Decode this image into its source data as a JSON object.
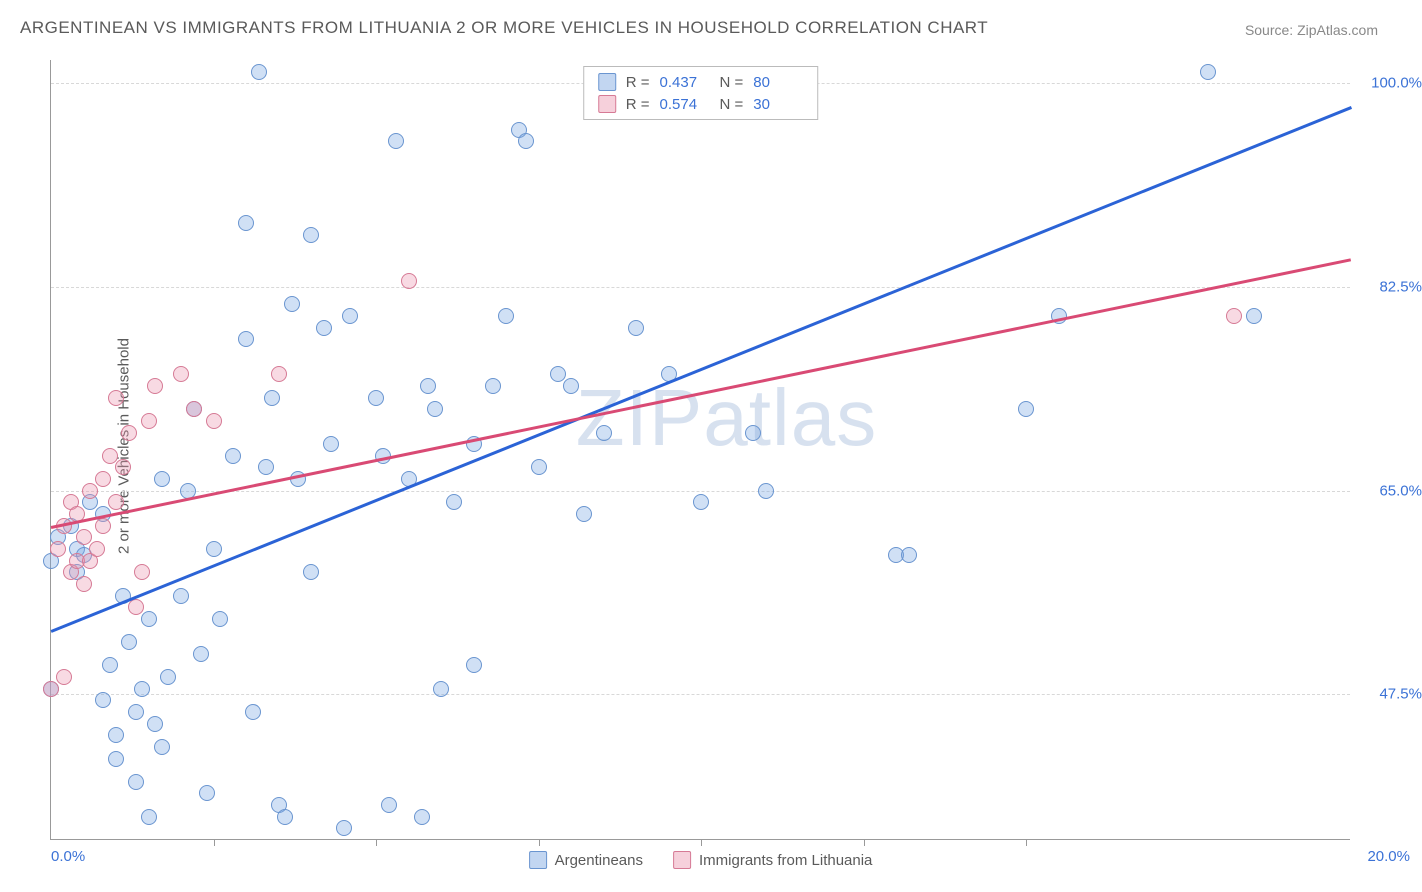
{
  "title": "ARGENTINEAN VS IMMIGRANTS FROM LITHUANIA 2 OR MORE VEHICLES IN HOUSEHOLD CORRELATION CHART",
  "source": "Source: ZipAtlas.com",
  "ylabel": "2 or more Vehicles in Household",
  "watermark": "ZIPatlas",
  "chart": {
    "type": "scatter",
    "xlim": [
      0,
      20
    ],
    "ylim": [
      35,
      102
    ],
    "xticks": [
      {
        "v": 0,
        "l": "0.0%"
      },
      {
        "v": 20,
        "l": "20.0%"
      }
    ],
    "yticks": [
      {
        "v": 47.5,
        "l": "47.5%"
      },
      {
        "v": 65,
        "l": "65.0%"
      },
      {
        "v": 82.5,
        "l": "82.5%"
      },
      {
        "v": 100,
        "l": "100.0%"
      }
    ],
    "x_minor_ticks": [
      2.5,
      5.0,
      7.5,
      10.0,
      12.5,
      15.0
    ],
    "background_color": "#ffffff",
    "grid_color": "#d8d8d8",
    "axis_color": "#999999",
    "tick_label_color": "#3b72d6",
    "text_color": "#5a5a5a",
    "title_fontsize": 17,
    "label_fontsize": 15,
    "tick_fontsize": 15,
    "marker_radius": 8,
    "series": [
      {
        "name": "Argentineans",
        "key": "a",
        "color_fill": "rgba(120,165,225,0.35)",
        "color_stroke": "#6a95d0",
        "R": "0.437",
        "N": "80",
        "trend": {
          "x1": 0,
          "y1": 53,
          "x2": 20,
          "y2": 98,
          "color": "#2b63d6",
          "width": 2.5
        },
        "points": [
          [
            0.0,
            59
          ],
          [
            0.0,
            48
          ],
          [
            0.1,
            61
          ],
          [
            0.3,
            62
          ],
          [
            0.4,
            58
          ],
          [
            0.4,
            60
          ],
          [
            0.5,
            59.5
          ],
          [
            0.6,
            64
          ],
          [
            0.8,
            63
          ],
          [
            0.8,
            47
          ],
          [
            0.9,
            50
          ],
          [
            1.0,
            44
          ],
          [
            1.0,
            42
          ],
          [
            1.1,
            56
          ],
          [
            1.2,
            52
          ],
          [
            1.3,
            46
          ],
          [
            1.3,
            40
          ],
          [
            1.4,
            48
          ],
          [
            1.5,
            54
          ],
          [
            1.5,
            37
          ],
          [
            1.6,
            45
          ],
          [
            1.7,
            66
          ],
          [
            1.7,
            43
          ],
          [
            1.8,
            49
          ],
          [
            2.0,
            56
          ],
          [
            2.1,
            65
          ],
          [
            2.2,
            72
          ],
          [
            2.3,
            51
          ],
          [
            2.4,
            39
          ],
          [
            2.5,
            60
          ],
          [
            2.6,
            54
          ],
          [
            2.8,
            68
          ],
          [
            3.0,
            78
          ],
          [
            3.0,
            88
          ],
          [
            3.1,
            46
          ],
          [
            3.2,
            101
          ],
          [
            3.3,
            67
          ],
          [
            3.4,
            73
          ],
          [
            3.5,
            38
          ],
          [
            3.6,
            37
          ],
          [
            3.7,
            81
          ],
          [
            3.8,
            66
          ],
          [
            4.0,
            87
          ],
          [
            4.0,
            58
          ],
          [
            4.2,
            79
          ],
          [
            4.3,
            69
          ],
          [
            4.5,
            36
          ],
          [
            4.6,
            80
          ],
          [
            5.0,
            73
          ],
          [
            5.1,
            68
          ],
          [
            5.2,
            38
          ],
          [
            5.3,
            95
          ],
          [
            5.5,
            66
          ],
          [
            5.7,
            37
          ],
          [
            5.8,
            74
          ],
          [
            5.9,
            72
          ],
          [
            6.0,
            48
          ],
          [
            6.2,
            64
          ],
          [
            6.5,
            69
          ],
          [
            6.5,
            50
          ],
          [
            6.8,
            74
          ],
          [
            7.0,
            80
          ],
          [
            7.2,
            96
          ],
          [
            7.3,
            95
          ],
          [
            7.5,
            67
          ],
          [
            7.8,
            75
          ],
          [
            8.0,
            74
          ],
          [
            8.2,
            63
          ],
          [
            8.5,
            70
          ],
          [
            9.0,
            79
          ],
          [
            9.5,
            75
          ],
          [
            10.0,
            64
          ],
          [
            10.8,
            70
          ],
          [
            11.0,
            65
          ],
          [
            13.0,
            59.5
          ],
          [
            13.2,
            59.5
          ],
          [
            15.0,
            72
          ],
          [
            15.5,
            80
          ],
          [
            17.8,
            101
          ],
          [
            18.5,
            80
          ]
        ]
      },
      {
        "name": "Immigrants from Lithuania",
        "key": "b",
        "color_fill": "rgba(235,150,175,0.35)",
        "color_stroke": "#d67a95",
        "R": "0.574",
        "N": "30",
        "trend": {
          "x1": 0,
          "y1": 62,
          "x2": 20,
          "y2": 85,
          "color": "#d94a74",
          "width": 2.5
        },
        "points": [
          [
            0.0,
            48
          ],
          [
            0.1,
            60
          ],
          [
            0.2,
            62
          ],
          [
            0.2,
            49
          ],
          [
            0.3,
            58
          ],
          [
            0.3,
            64
          ],
          [
            0.4,
            63
          ],
          [
            0.4,
            59
          ],
          [
            0.5,
            57
          ],
          [
            0.5,
            61
          ],
          [
            0.6,
            65
          ],
          [
            0.6,
            59
          ],
          [
            0.7,
            60
          ],
          [
            0.8,
            62
          ],
          [
            0.8,
            66
          ],
          [
            0.9,
            68
          ],
          [
            1.0,
            73
          ],
          [
            1.0,
            64
          ],
          [
            1.1,
            67
          ],
          [
            1.2,
            70
          ],
          [
            1.3,
            55
          ],
          [
            1.4,
            58
          ],
          [
            1.5,
            71
          ],
          [
            1.6,
            74
          ],
          [
            2.0,
            75
          ],
          [
            2.2,
            72
          ],
          [
            2.5,
            71
          ],
          [
            3.5,
            75
          ],
          [
            5.5,
            83
          ],
          [
            18.2,
            80
          ]
        ]
      }
    ],
    "legend_bottom": [
      {
        "swatch": "a",
        "label": "Argentineans"
      },
      {
        "swatch": "b",
        "label": "Immigrants from Lithuania"
      }
    ],
    "legend_corr": [
      {
        "swatch": "a",
        "R": "0.437",
        "N": "80"
      },
      {
        "swatch": "b",
        "R": "0.574",
        "N": "30"
      }
    ]
  }
}
